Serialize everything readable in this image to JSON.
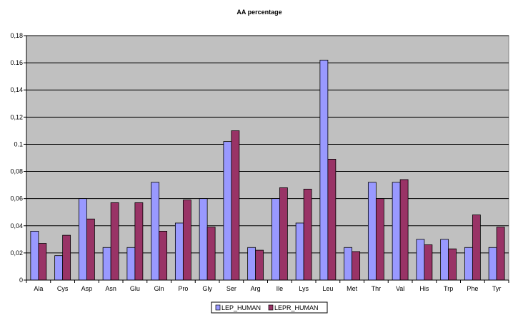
{
  "chart_data": {
    "type": "bar",
    "title": "AA percentage",
    "xlabel": "",
    "ylabel": "",
    "ylim": [
      0,
      0.18
    ],
    "yticks": [
      "0",
      "0,02",
      "0,04",
      "0,06",
      "0,08",
      "0.1",
      "0,12",
      "0,14",
      "0.16",
      "0,18"
    ],
    "grid": true,
    "legend_position": "bottom",
    "plot_background": "#c0c0c0",
    "categories": [
      "Ala",
      "Cys",
      "Asp",
      "Asn",
      "Glu",
      "Gln",
      "Pro",
      "Gly",
      "Ser",
      "Arg",
      "Ile",
      "Lys",
      "Leu",
      "Met",
      "Thr",
      "Val",
      "His",
      "Trp",
      "Phe",
      "Tyr"
    ],
    "series": [
      {
        "name": "LEP_HUMAN",
        "color": "#9999ff",
        "values": [
          0.036,
          0.018,
          0.06,
          0.024,
          0.024,
          0.072,
          0.042,
          0.06,
          0.102,
          0.024,
          0.06,
          0.042,
          0.162,
          0.024,
          0.072,
          0.072,
          0.03,
          0.03,
          0.024,
          0.024
        ]
      },
      {
        "name": "LEPR_HUMAN",
        "color": "#993366",
        "values": [
          0.027,
          0.033,
          0.045,
          0.057,
          0.057,
          0.036,
          0.059,
          0.039,
          0.11,
          0.022,
          0.068,
          0.067,
          0.089,
          0.021,
          0.06,
          0.074,
          0.026,
          0.023,
          0.048,
          0.039
        ]
      }
    ]
  }
}
